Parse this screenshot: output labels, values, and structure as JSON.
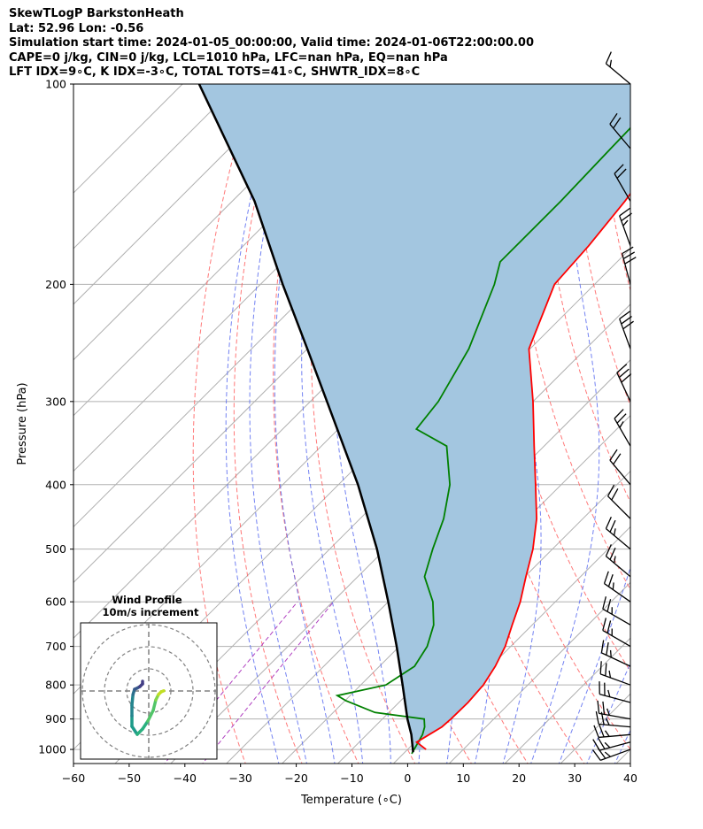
{
  "header": {
    "line1": "SkewTLogP BarkstonHeath",
    "line2": "Lat: 52.96   Lon: -0.56",
    "line3": "Simulation start time: 2024-01-05_00:00:00, Valid time: 2024-01-06T22:00:00.00",
    "line4": "CAPE=0 j/kg, CIN=0 j/kg, LCL=1010 hPa, LFC=nan hPa, EQ=nan hPa",
    "line5": "LFT IDX=9∘C, K IDX=-3∘C, TOTAL TOTS=41∘C, SHWTR_IDX=8∘C"
  },
  "chart_data": {
    "type": "line",
    "subtype": "skew-t log-p",
    "xlabel": "Temperature (∘C)",
    "ylabel": "Pressure (hPa)",
    "xlim": [
      -60,
      40
    ],
    "ylim": [
      1050,
      100
    ],
    "y_scale": "log",
    "grid": true,
    "x_ticks": [
      "−60",
      "−50",
      "−40",
      "−30",
      "−20",
      "−10",
      "0",
      "10",
      "20",
      "30",
      "40"
    ],
    "y_ticks": [
      "100",
      "200",
      "300",
      "400",
      "500",
      "600",
      "700",
      "800",
      "900",
      "1000"
    ],
    "series": [
      {
        "name": "",
        "role": "temperature",
        "color": "#ff0000",
        "points": [
          [
            1000,
            3.3
          ],
          [
            975,
            0.3
          ],
          [
            950,
            1.2
          ],
          [
            925,
            2.1
          ],
          [
            900,
            2.3
          ],
          [
            850,
            2.4
          ],
          [
            800,
            2.0
          ],
          [
            750,
            0.8
          ],
          [
            700,
            -1.0
          ],
          [
            650,
            -3.6
          ],
          [
            600,
            -6.3
          ],
          [
            550,
            -9.8
          ],
          [
            500,
            -13.5
          ],
          [
            450,
            -18.3
          ],
          [
            400,
            -24.6
          ],
          [
            350,
            -31.8
          ],
          [
            300,
            -40.0
          ],
          [
            250,
            -50.2
          ],
          [
            200,
            -57.2
          ],
          [
            175,
            -58.0
          ],
          [
            150,
            -59.5
          ],
          [
            125,
            -62.0
          ],
          [
            100,
            -64.5
          ]
        ]
      },
      {
        "name": "",
        "role": "dewpoint",
        "color": "#008000",
        "points": [
          [
            1015,
            1.5
          ],
          [
            950,
            0.0
          ],
          [
            925,
            -1.0
          ],
          [
            900,
            -2.5
          ],
          [
            880,
            -12.5
          ],
          [
            845,
            -19.8
          ],
          [
            830,
            -22.3
          ],
          [
            800,
            -15.5
          ],
          [
            750,
            -13.7
          ],
          [
            700,
            -15.0
          ],
          [
            650,
            -17.7
          ],
          [
            600,
            -22.0
          ],
          [
            550,
            -28.0
          ],
          [
            500,
            -31.5
          ],
          [
            450,
            -35.0
          ],
          [
            400,
            -40.0
          ],
          [
            350,
            -47.5
          ],
          [
            330,
            -56.0
          ],
          [
            300,
            -57.0
          ],
          [
            250,
            -61.0
          ],
          [
            200,
            -68.0
          ],
          [
            185,
            -71.0
          ],
          [
            150,
            -71.0
          ],
          [
            125,
            -71.5
          ],
          [
            100,
            -72.0
          ]
        ]
      },
      {
        "name": "",
        "role": "parcel",
        "color": "#000000",
        "points": [
          [
            1010,
            1.5
          ],
          [
            950,
            -2.0
          ],
          [
            900,
            -5.5
          ],
          [
            800,
            -12.5
          ],
          [
            700,
            -20.5
          ],
          [
            600,
            -30.0
          ],
          [
            500,
            -41.5
          ],
          [
            400,
            -56.5
          ],
          [
            300,
            -77.0
          ],
          [
            250,
            -90.0
          ],
          [
            200,
            -106.0
          ],
          [
            150,
            -126.0
          ],
          [
            100,
            -157.0
          ]
        ]
      }
    ],
    "wind_barbs": [
      {
        "p": 1000,
        "dir": 250,
        "speed_kt": 25
      },
      {
        "p": 975,
        "dir": 255,
        "speed_kt": 25
      },
      {
        "p": 950,
        "dir": 265,
        "speed_kt": 25
      },
      {
        "p": 925,
        "dir": 275,
        "speed_kt": 25
      },
      {
        "p": 900,
        "dir": 280,
        "speed_kt": 25
      },
      {
        "p": 850,
        "dir": 285,
        "speed_kt": 25
      },
      {
        "p": 800,
        "dir": 290,
        "speed_kt": 25
      },
      {
        "p": 750,
        "dir": 295,
        "speed_kt": 25
      },
      {
        "p": 700,
        "dir": 300,
        "speed_kt": 25
      },
      {
        "p": 650,
        "dir": 300,
        "speed_kt": 25
      },
      {
        "p": 600,
        "dir": 305,
        "speed_kt": 25
      },
      {
        "p": 550,
        "dir": 310,
        "speed_kt": 25
      },
      {
        "p": 500,
        "dir": 310,
        "speed_kt": 25
      },
      {
        "p": 450,
        "dir": 315,
        "speed_kt": 20
      },
      {
        "p": 400,
        "dir": 320,
        "speed_kt": 20
      },
      {
        "p": 350,
        "dir": 330,
        "speed_kt": 25
      },
      {
        "p": 300,
        "dir": 335,
        "speed_kt": 30
      },
      {
        "p": 250,
        "dir": 340,
        "speed_kt": 30
      },
      {
        "p": 200,
        "dir": 345,
        "speed_kt": 30
      },
      {
        "p": 175,
        "dir": 340,
        "speed_kt": 25
      },
      {
        "p": 150,
        "dir": 330,
        "speed_kt": 20
      },
      {
        "p": 125,
        "dir": 320,
        "speed_kt": 20
      },
      {
        "p": 100,
        "dir": 310,
        "speed_kt": 15
      }
    ],
    "hodograph": {
      "title_line1": "Wind Profile",
      "title_line2": "10m/s increment",
      "ring_increment_ms": 10,
      "points_uv": [
        [
          1.0,
          -6.5
        ],
        [
          2.0,
          -5.5
        ],
        [
          3.0,
          -4.0
        ],
        [
          4.0,
          -2.0
        ],
        [
          4.5,
          0.0
        ],
        [
          5.0,
          1.0
        ],
        [
          5.5,
          1.5
        ],
        [
          5.0,
          2.0
        ],
        [
          0,
          -6.5
        ],
        [
          -1.0,
          -5.0
        ],
        [
          -1.0,
          -3.0
        ],
        [
          -1.0,
          -1.0
        ],
        [
          -0.8,
          1.0
        ],
        [
          -0.5,
          2.0
        ],
        [
          0,
          2.2
        ],
        [
          0.5,
          2.5
        ],
        [
          1.0,
          3.0
        ],
        [
          1.0,
          3.5
        ]
      ]
    },
    "colors": {
      "cape_fill": "#a3c6e0",
      "isotherms": "#b0b0b0",
      "dry_adiabats": "#ff6060",
      "moist_adiabats": "#5a6cf0",
      "mixing_ratio": "#b040c0"
    }
  }
}
